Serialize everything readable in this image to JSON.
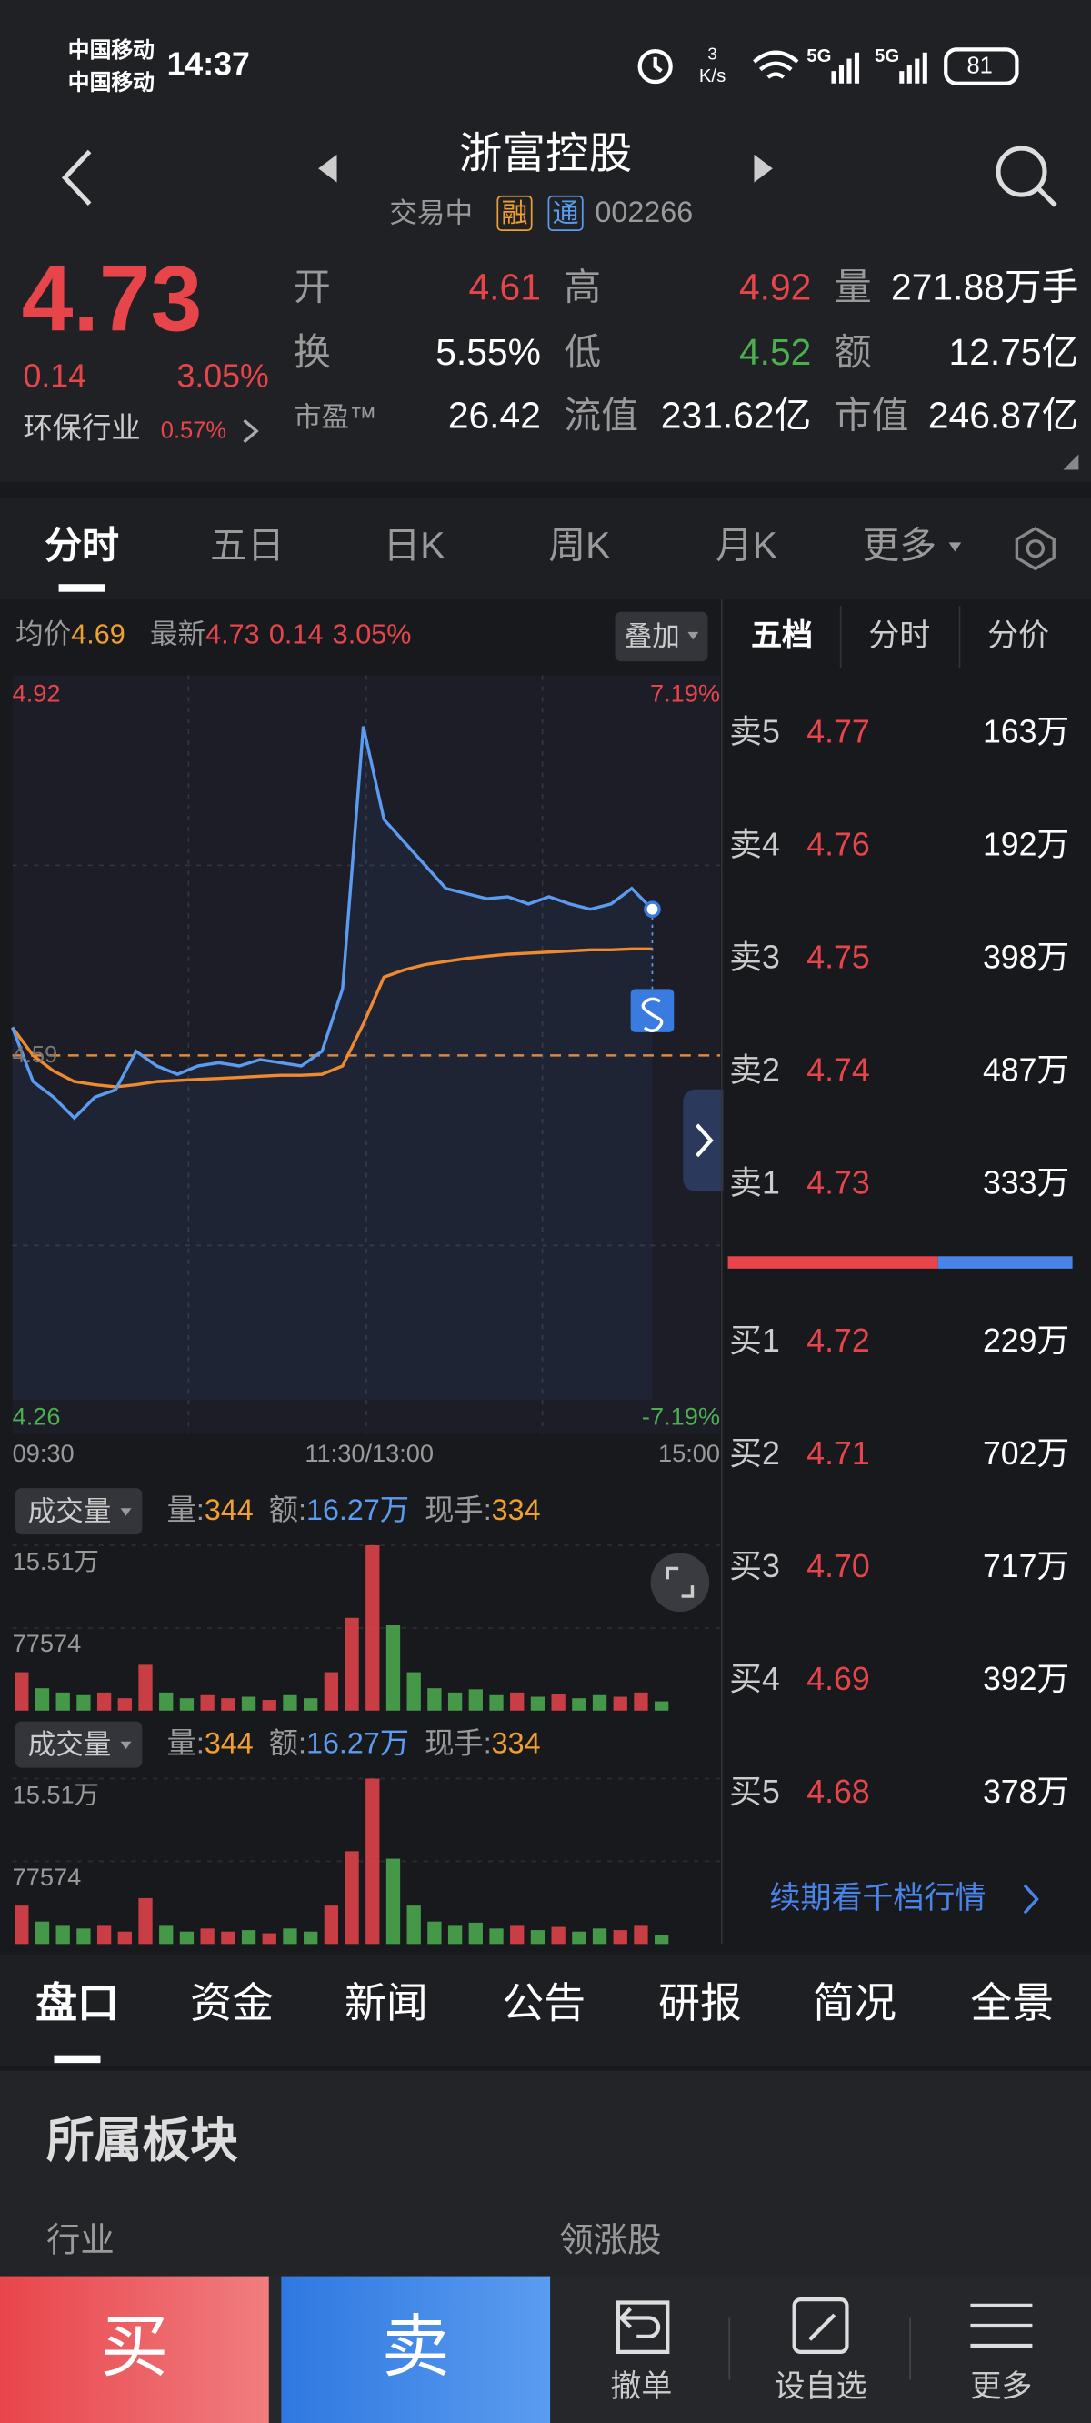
{
  "status_bar": {
    "carriers": [
      "中国移动",
      "中国移动"
    ],
    "time": "14:37",
    "net_speed": {
      "value": "3",
      "unit": "K/s"
    },
    "network": [
      "5G",
      "5G"
    ],
    "battery": "81"
  },
  "header": {
    "title": "浙富控股",
    "status": "交易中",
    "tags": [
      "融",
      "通"
    ],
    "code": "002266"
  },
  "quote": {
    "price": "4.73",
    "change": "0.14",
    "change_pct": "3.05%",
    "industry": "环保行业",
    "industry_pct": "0.57%",
    "stats": [
      {
        "label": "开",
        "value": "4.61"
      },
      {
        "label": "高",
        "value": "4.92"
      },
      {
        "label": "量",
        "value": "271.88万手"
      },
      {
        "label": "换",
        "value": "5.55%"
      },
      {
        "label": "低",
        "value": "4.52"
      },
      {
        "label": "额",
        "value": "12.75亿"
      },
      {
        "label": "市盈™",
        "value": "26.42"
      },
      {
        "label": "流值",
        "value": "231.62亿"
      },
      {
        "label": "市值",
        "value": "246.87亿"
      }
    ]
  },
  "chart_tabs": [
    "分时",
    "五日",
    "日K",
    "周K",
    "月K",
    "更多"
  ],
  "intraday": {
    "avg_label": "均价",
    "avg": "4.69",
    "latest_label": "最新",
    "latest": "4.73",
    "change": "0.14",
    "change_pct": "3.05%",
    "overlay": "叠加",
    "ylim": [
      4.26,
      4.92
    ],
    "prev_close": 4.59,
    "pct_labels": [
      "7.19%",
      "-7.19%"
    ],
    "xlim": [
      0,
      240
    ],
    "x_labels": [
      "09:30",
      "11:30/13:00",
      "15:00"
    ],
    "minutes": [
      0,
      7,
      14,
      21,
      28,
      35,
      42,
      49,
      56,
      63,
      70,
      77,
      84,
      91,
      98,
      105,
      112,
      119,
      126,
      133,
      140,
      147,
      154,
      161,
      168,
      175,
      182,
      189,
      196,
      203,
      210,
      217
    ],
    "price": [
      4.617,
      4.565,
      4.55,
      4.53,
      4.55,
      4.557,
      4.594,
      4.58,
      4.572,
      4.58,
      4.583,
      4.58,
      4.586,
      4.583,
      4.58,
      4.594,
      4.654,
      4.905,
      4.816,
      4.794,
      4.772,
      4.75,
      4.745,
      4.74,
      4.742,
      4.735,
      4.742,
      4.735,
      4.73,
      4.735,
      4.75,
      4.73
    ],
    "avg_price": [
      4.617,
      4.59,
      4.575,
      4.565,
      4.562,
      4.56,
      4.562,
      4.565,
      4.566,
      4.567,
      4.568,
      4.569,
      4.57,
      4.571,
      4.571,
      4.572,
      4.58,
      4.62,
      4.665,
      4.672,
      4.677,
      4.68,
      4.683,
      4.685,
      4.687,
      4.688,
      4.689,
      4.69,
      4.691,
      4.691,
      4.692,
      4.692
    ]
  },
  "volume": {
    "selector": "成交量",
    "vol_label": "量:",
    "vol": "344",
    "amt_label": "额:",
    "amt": "16.27万",
    "hand_label": "现手:",
    "hand": "334",
    "ylim": [
      0,
      155100
    ],
    "yticks": [
      {
        "value": 155100,
        "label": "15.51万"
      },
      77574
    ],
    "values": [
      36000,
      21000,
      17000,
      14500,
      17000,
      11600,
      43000,
      17000,
      11600,
      14500,
      11600,
      13000,
      10000,
      14500,
      11600,
      36000,
      87000,
      155100,
      80000,
      36000,
      21000,
      17000,
      20000,
      14500,
      17000,
      13000,
      16000,
      11600,
      14500,
      13000,
      17000,
      8700
    ]
  },
  "order_book": {
    "tabs": [
      "五档",
      "分时",
      "分价"
    ],
    "asks": [
      {
        "label": "卖5",
        "price": "4.77",
        "volume": "163万"
      },
      {
        "label": "卖4",
        "price": "4.76",
        "volume": "192万"
      },
      {
        "label": "卖3",
        "price": "4.75",
        "volume": "398万"
      },
      {
        "label": "卖2",
        "price": "4.74",
        "volume": "487万"
      },
      {
        "label": "卖1",
        "price": "4.73",
        "volume": "333万"
      }
    ],
    "bids": [
      {
        "label": "买1",
        "price": "4.72",
        "volume": "229万"
      },
      {
        "label": "买2",
        "price": "4.71",
        "volume": "702万"
      },
      {
        "label": "买3",
        "price": "4.70",
        "volume": "717万"
      },
      {
        "label": "买4",
        "price": "4.69",
        "volume": "392万"
      },
      {
        "label": "买5",
        "price": "4.68",
        "volume": "378万"
      }
    ],
    "link": "续期看千档行情"
  },
  "detail_tabs": [
    "盘口",
    "资金",
    "新闻",
    "公告",
    "研报",
    "简况",
    "全景"
  ],
  "section": {
    "title": "所属板块",
    "columns": [
      "行业",
      "领涨股"
    ]
  },
  "actions": [
    "买",
    "卖",
    "撤单",
    "设自选",
    "更多"
  ]
}
